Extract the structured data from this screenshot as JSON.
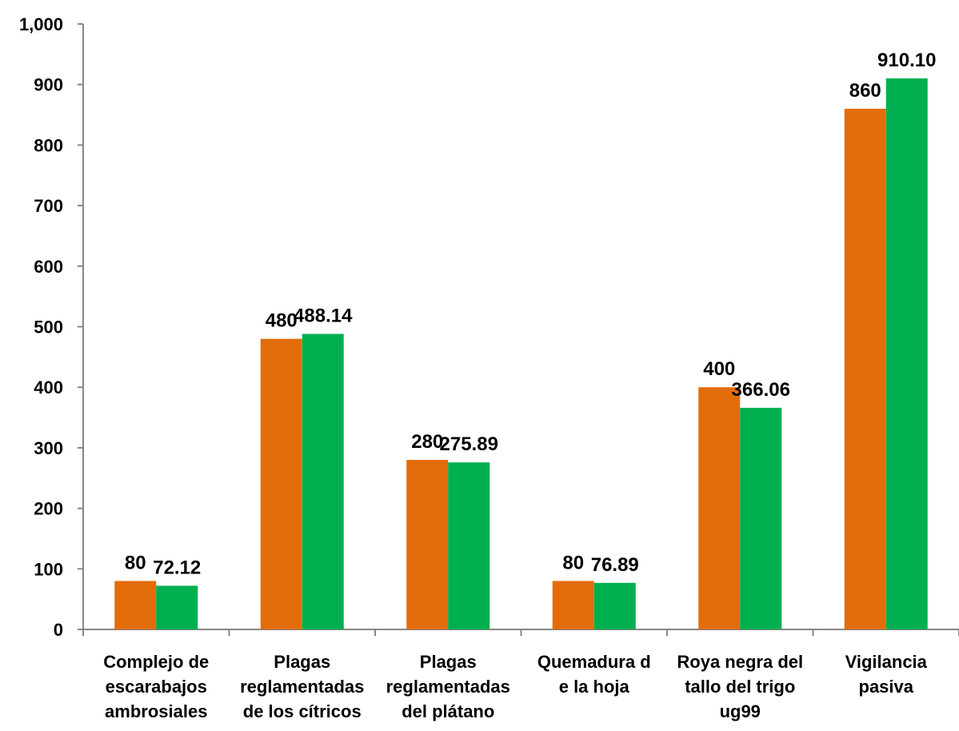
{
  "chart_data": {
    "type": "bar",
    "categories": [
      [
        "Complejo de",
        "escarabajos",
        "ambrosiales"
      ],
      [
        "Plagas",
        "reglamentadas",
        "de los cítricos"
      ],
      [
        "Plagas",
        "reglamentadas",
        "del plátano"
      ],
      [
        "Quemadura d",
        "e la hoja"
      ],
      [
        "Roya negra del",
        "tallo del trigo",
        "ug99"
      ],
      [
        "Vigilancia",
        "pasiva"
      ]
    ],
    "series": [
      {
        "values": [
          80,
          480,
          280,
          80,
          400,
          860
        ],
        "labels": [
          "80",
          "480",
          "280",
          "80",
          "400",
          "860"
        ],
        "color": "#E36C0A"
      },
      {
        "values": [
          72.12,
          488.14,
          275.89,
          76.89,
          366.06,
          910.1
        ],
        "labels": [
          "72.12",
          "488.14",
          "275.89",
          "76.89",
          "366.06",
          "910.10"
        ],
        "color": "#00B050"
      }
    ],
    "ylim": [
      0,
      1000
    ],
    "yticks": [
      0,
      100,
      200,
      300,
      400,
      500,
      600,
      700,
      800,
      900,
      1000
    ],
    "ytick_labels": [
      "0",
      "100",
      "200",
      "300",
      "400",
      "500",
      "600",
      "700",
      "800",
      "900",
      "1,000"
    ],
    "grid": false,
    "legend": "none"
  }
}
